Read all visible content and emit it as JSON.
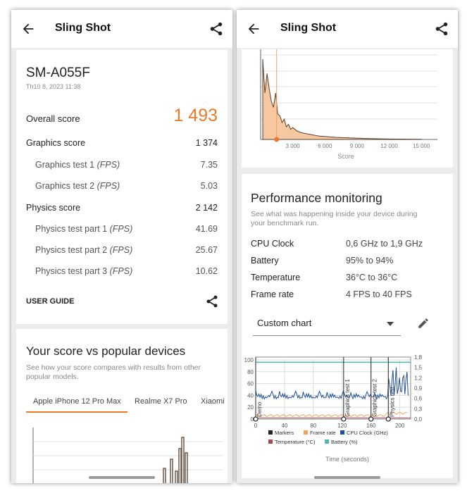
{
  "left": {
    "topbar": {
      "title": "Sling Shot"
    },
    "score_card": {
      "device": "SM-A055F",
      "date": "Th10 8, 2023 11:38",
      "overall_label": "Overall score",
      "overall_value": "1 493",
      "rows": [
        {
          "label": "Graphics score",
          "value": "1 374"
        },
        {
          "label": "Graphics test 1",
          "unit": "(FPS)",
          "value": "7.35"
        },
        {
          "label": "Graphics test 2",
          "unit": "(FPS)",
          "value": "5.03"
        },
        {
          "label": "Physics score",
          "value": "2 142"
        },
        {
          "label": "Physics test part 1",
          "unit": "(FPS)",
          "value": "41.69"
        },
        {
          "label": "Physics test part 2",
          "unit": "(FPS)",
          "value": "25.67"
        },
        {
          "label": "Physics test part 3",
          "unit": "(FPS)",
          "value": "10.62"
        }
      ],
      "user_guide": "USER GUIDE"
    },
    "compare_card": {
      "title": "Your score vs popular devices",
      "description_line1": "See how your score compares with results from other",
      "description_line2": "popular models.",
      "tabs": [
        "Apple iPhone 12 Pro Max",
        "Realme X7 Pro",
        "Xiaomi"
      ],
      "active_tab": 0
    }
  },
  "right": {
    "topbar": {
      "title": "Sling Shot"
    },
    "distribution": {
      "x_ticks": [
        "3 000",
        "6 000",
        "9 000",
        "12 000",
        "15 000"
      ],
      "xlabel": "Score"
    },
    "perf": {
      "title": "Performance monitoring",
      "description_line1": "See what was happening inside your device during",
      "description_line2": "your benchmark run.",
      "metrics": [
        {
          "label": "CPU Clock",
          "value": "0,6 GHz to 1,9 GHz"
        },
        {
          "label": "Battery",
          "value": "95% to 94%"
        },
        {
          "label": "Temperature",
          "value": "36°C to 36°C"
        },
        {
          "label": "Frame rate",
          "value": "4 FPS to 40 FPS"
        }
      ],
      "select_value": "Custom chart"
    }
  },
  "chart_data": [
    {
      "type": "area",
      "title": "",
      "xlabel": "Score",
      "ylabel": "",
      "x_ticks": [
        3000,
        6000,
        9000,
        12000,
        15000
      ],
      "xlim": [
        0,
        16500
      ],
      "your_score": 1493,
      "x": [
        200,
        400,
        600,
        800,
        1000,
        1200,
        1400,
        1600,
        1800,
        2000,
        2200,
        2400,
        2600,
        2800,
        3000,
        3400,
        3800,
        4200,
        4600,
        5000,
        5500,
        6000,
        7000,
        8000,
        9000,
        10000,
        12000,
        15000
      ],
      "values": [
        95,
        55,
        78,
        60,
        45,
        38,
        55,
        30,
        28,
        20,
        24,
        15,
        18,
        12,
        14,
        10,
        8,
        7,
        6,
        5,
        4,
        3.5,
        2.5,
        2,
        1.5,
        1,
        0.5,
        0.2
      ],
      "grid": true
    },
    {
      "type": "line",
      "title": "",
      "xlabel": "Time (seconds)",
      "x_ticks": [
        0,
        40,
        80,
        120,
        160,
        200
      ],
      "xlim": [
        0,
        215
      ],
      "y_left_ticks": [
        0,
        20,
        40,
        60,
        80,
        100
      ],
      "y_right_ticks": [
        "0,0",
        "0,3",
        "0,6",
        "0,9",
        "1,2",
        "1,5",
        "1,8"
      ],
      "markers": [
        {
          "label": "Demo",
          "x": 0
        },
        {
          "label": "Graphics test 1",
          "x": 122
        },
        {
          "label": "Graphics test 2",
          "x": 160
        },
        {
          "label": "Physics test",
          "x": 184
        }
      ],
      "series": [
        {
          "name": "Markers",
          "color": "#222222"
        },
        {
          "name": "Frame rate",
          "color": "#f2a45c"
        },
        {
          "name": "CPU Clock (GHz)",
          "color": "#1f4e9c"
        },
        {
          "name": "Temperature (°C)",
          "color": "#a8465a"
        },
        {
          "name": "Battery (%)",
          "color": "#4fb7b2"
        }
      ],
      "legend": "bottom",
      "grid": true
    }
  ],
  "colors": {
    "accent": "#ec7a2a",
    "cpu": "#1f4e9c",
    "fps": "#f2a45c",
    "battery": "#4fb7b2"
  }
}
